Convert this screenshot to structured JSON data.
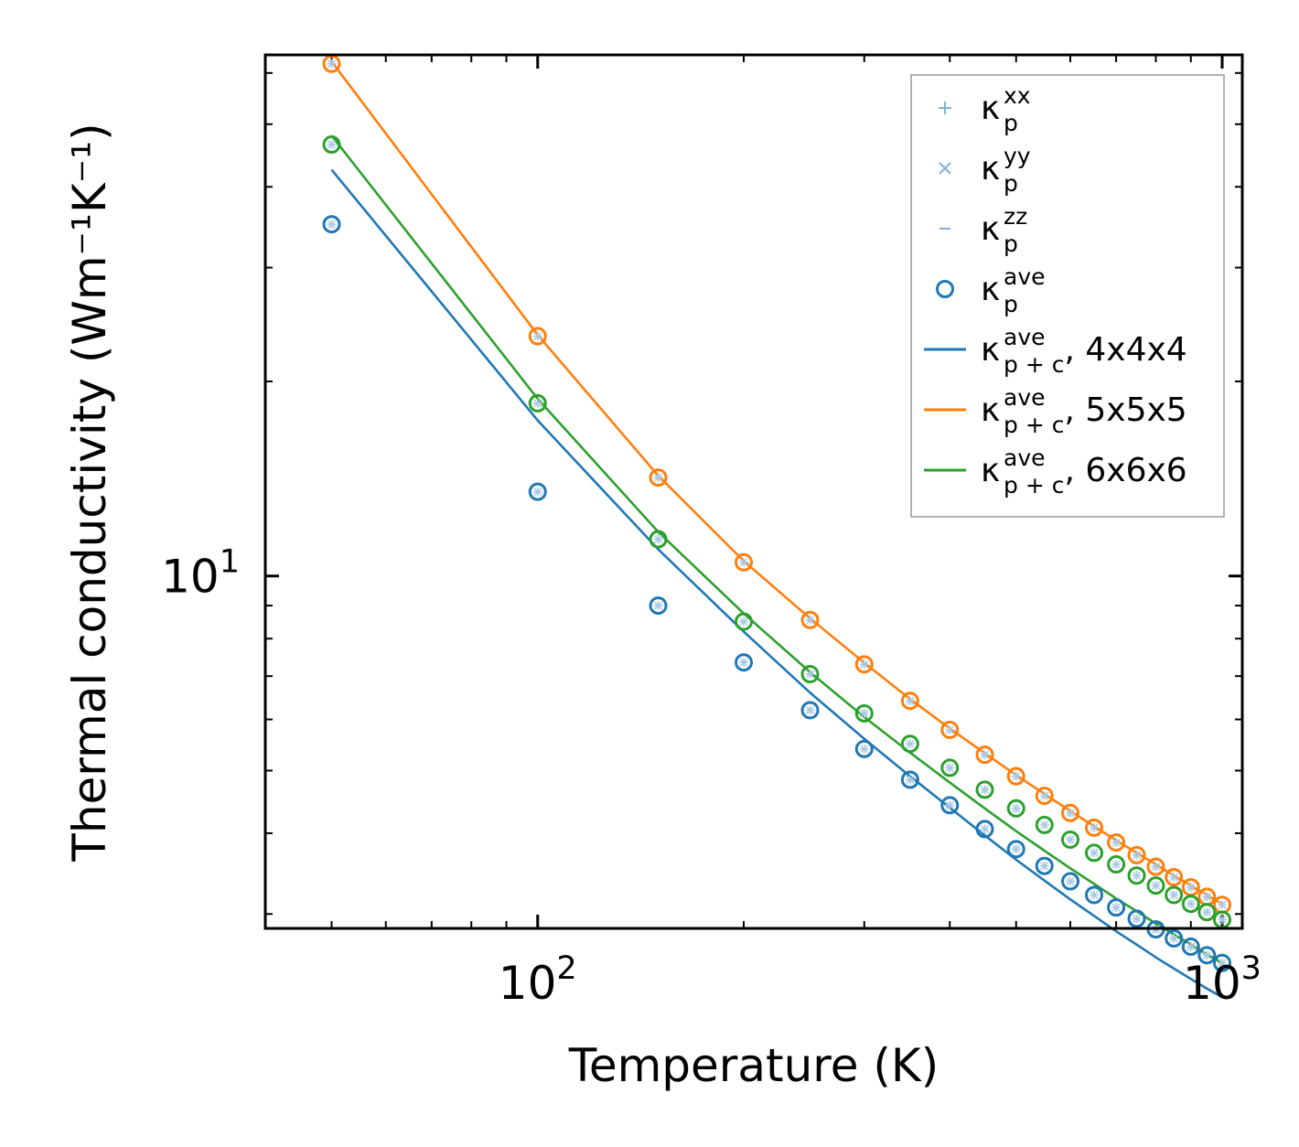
{
  "chart_data": {
    "type": "scatter",
    "xscale": "log",
    "yscale": "log",
    "xlabel": "Temperature (K)",
    "ylabel": "Thermal conductivity (Wm⁻¹K⁻¹)",
    "xlim": [
      40,
      1070
    ],
    "ylim": [
      2.85,
      64
    ],
    "x_major_ticks": [
      {
        "value": 100,
        "base": "10",
        "exp": "2"
      },
      {
        "value": 1000,
        "base": "10",
        "exp": "3"
      }
    ],
    "y_major_ticks": [
      {
        "value": 10,
        "base": "10",
        "exp": "1"
      }
    ],
    "legend_position": "top-right",
    "legend": [
      {
        "kind": "plus",
        "sym": "κ",
        "sup": "xx",
        "sub": "p",
        "suffix": "",
        "color": "#7fb3d9"
      },
      {
        "kind": "cross",
        "sym": "κ",
        "sup": "yy",
        "sub": "p",
        "suffix": "",
        "color": "#7fb3d9"
      },
      {
        "kind": "dash",
        "sym": "κ",
        "sup": "zz",
        "sub": "p",
        "suffix": "",
        "color": "#7fb3d9"
      },
      {
        "kind": "circle",
        "sym": "κ",
        "sup": "ave",
        "sub": "p",
        "suffix": "",
        "color": "#1f77b4"
      },
      {
        "kind": "line",
        "sym": "κ",
        "sup": "ave",
        "sub": "p + c",
        "suffix": ", 4x4x4",
        "color": "#1f77b4"
      },
      {
        "kind": "line",
        "sym": "κ",
        "sup": "ave",
        "sub": "p + c",
        "suffix": ", 5x5x5",
        "color": "#ff7f0e"
      },
      {
        "kind": "line",
        "sym": "κ",
        "sup": "ave",
        "sub": "p + c",
        "suffix": ", 6x6x6",
        "color": "#2ca02c"
      }
    ],
    "series": [
      {
        "name": "4x4x4",
        "color": "#1f77b4",
        "x": [
          50,
          100,
          150,
          200,
          250,
          300,
          350,
          400,
          450,
          500,
          550,
          600,
          650,
          700,
          750,
          800,
          850,
          900,
          950,
          1000
        ],
        "points": [
          35.0,
          13.5,
          9.0,
          7.35,
          6.2,
          5.4,
          4.84,
          4.42,
          4.06,
          3.78,
          3.56,
          3.37,
          3.21,
          3.07,
          2.95,
          2.84,
          2.75,
          2.67,
          2.59,
          2.52
        ],
        "line": [
          42.5,
          17.4,
          11.0,
          8.2,
          6.6,
          5.6,
          4.9,
          4.38,
          3.97,
          3.64,
          3.38,
          3.16,
          2.98,
          2.82,
          2.69,
          2.57,
          2.47,
          2.38,
          2.3,
          2.23
        ]
      },
      {
        "name": "5x5x5",
        "color": "#ff7f0e",
        "x": [
          50,
          100,
          150,
          200,
          250,
          300,
          350,
          400,
          450,
          500,
          550,
          600,
          650,
          700,
          750,
          800,
          850,
          900,
          950,
          1000
        ],
        "points": [
          62.0,
          23.5,
          14.2,
          10.5,
          8.55,
          7.3,
          6.41,
          5.78,
          5.29,
          4.9,
          4.57,
          4.3,
          4.08,
          3.87,
          3.7,
          3.55,
          3.42,
          3.3,
          3.19,
          3.1
        ],
        "line": [
          62.5,
          23.6,
          14.3,
          10.55,
          8.6,
          7.34,
          6.45,
          5.81,
          5.32,
          4.92,
          4.6,
          4.33,
          4.1,
          3.9,
          3.73,
          3.58,
          3.44,
          3.32,
          3.21,
          3.11
        ]
      },
      {
        "name": "6x6x6",
        "color": "#2ca02c",
        "x": [
          50,
          100,
          150,
          200,
          250,
          300,
          350,
          400,
          450,
          500,
          550,
          600,
          650,
          700,
          750,
          800,
          850,
          900,
          950,
          1000
        ],
        "points": [
          46.5,
          18.5,
          11.4,
          8.5,
          7.05,
          6.13,
          5.5,
          5.05,
          4.67,
          4.37,
          4.12,
          3.91,
          3.73,
          3.58,
          3.44,
          3.32,
          3.21,
          3.11,
          3.02,
          2.94
        ],
        "line": [
          48.0,
          18.8,
          11.7,
          8.75,
          7.1,
          6.05,
          5.33,
          4.79,
          4.37,
          4.03,
          3.76,
          3.53,
          3.34,
          3.17,
          3.03,
          2.9,
          2.79,
          2.69,
          2.6,
          2.52
        ]
      }
    ]
  }
}
